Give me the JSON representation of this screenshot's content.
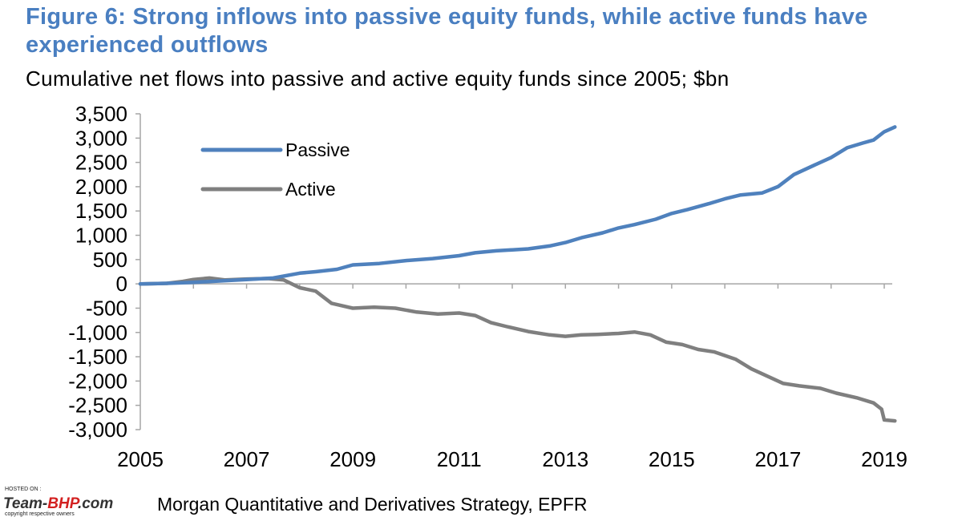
{
  "title": "Figure 6: Strong inflows into passive equity funds, while active funds have experienced outflows",
  "subtitle": "Cumulative net flows into passive and active equity funds since 2005; $bn",
  "source": "Morgan Quantitative and Derivatives Strategy, EPFR",
  "watermark": {
    "hosted_on": "HOSTED ON :",
    "site_prefix": "Team-",
    "site_brand": "BHP",
    "site_suffix": ".com",
    "copyright": "copyright respective owners"
  },
  "colors": {
    "passive": "#4f81bd",
    "active": "#7f7f7f",
    "title": "#4a7fc1"
  },
  "chart_data": {
    "type": "line",
    "title": "Figure 6: Strong inflows into passive equity funds, while active funds have experienced outflows",
    "subtitle": "Cumulative net flows into passive and active equity funds since 2005; $bn",
    "xlim": [
      2005,
      2019.2
    ],
    "ylim": [
      -3000,
      3500
    ],
    "x_ticks": [
      "2005",
      "2007",
      "2009",
      "2011",
      "2013",
      "2015",
      "2017",
      "2019"
    ],
    "y_ticks": [
      "3,500",
      "3,000",
      "2,500",
      "2,000",
      "1,500",
      "1,000",
      "500",
      "0",
      "-500",
      "-1,000",
      "-1,500",
      "-2,000",
      "-2,500",
      "-3,000"
    ],
    "y_tick_values": [
      3500,
      3000,
      2500,
      2000,
      1500,
      1000,
      500,
      0,
      -500,
      -1000,
      -1500,
      -2000,
      -2500,
      -3000
    ],
    "x_tick_values": [
      2005,
      2007,
      2009,
      2011,
      2013,
      2015,
      2017,
      2019
    ],
    "legend": [
      "Passive",
      "Active"
    ],
    "legend_position": "top-left",
    "grid": false,
    "series": [
      {
        "name": "Passive",
        "color": "#4f81bd",
        "x": [
          2005.0,
          2005.5,
          2006.0,
          2006.5,
          2007.0,
          2007.5,
          2008.0,
          2008.3,
          2008.7,
          2009.0,
          2009.5,
          2010.0,
          2010.5,
          2011.0,
          2011.3,
          2011.7,
          2012.0,
          2012.3,
          2012.7,
          2013.0,
          2013.3,
          2013.7,
          2014.0,
          2014.3,
          2014.7,
          2015.0,
          2015.3,
          2015.7,
          2016.0,
          2016.3,
          2016.7,
          2017.0,
          2017.3,
          2017.7,
          2018.0,
          2018.3,
          2018.6,
          2018.8,
          2019.0,
          2019.2
        ],
        "y": [
          0,
          10,
          30,
          60,
          90,
          120,
          220,
          250,
          300,
          390,
          420,
          480,
          520,
          580,
          640,
          680,
          700,
          720,
          780,
          850,
          950,
          1050,
          1150,
          1220,
          1330,
          1450,
          1530,
          1650,
          1750,
          1830,
          1870,
          2000,
          2250,
          2450,
          2600,
          2800,
          2900,
          2960,
          3130,
          3230
        ]
      },
      {
        "name": "Active",
        "color": "#7f7f7f",
        "x": [
          2005.0,
          2005.5,
          2005.8,
          2006.0,
          2006.3,
          2006.6,
          2007.0,
          2007.4,
          2007.7,
          2008.0,
          2008.3,
          2008.6,
          2009.0,
          2009.4,
          2009.8,
          2010.2,
          2010.6,
          2011.0,
          2011.3,
          2011.6,
          2011.9,
          2012.3,
          2012.7,
          2013.0,
          2013.3,
          2013.6,
          2014.0,
          2014.3,
          2014.6,
          2014.9,
          2015.2,
          2015.5,
          2015.8,
          2016.2,
          2016.5,
          2016.8,
          2017.1,
          2017.4,
          2017.8,
          2018.1,
          2018.5,
          2018.8,
          2018.95,
          2019.0,
          2019.2
        ],
        "y": [
          0,
          10,
          50,
          90,
          120,
          80,
          100,
          110,
          80,
          -80,
          -150,
          -400,
          -500,
          -480,
          -500,
          -580,
          -620,
          -600,
          -650,
          -800,
          -880,
          -980,
          -1050,
          -1080,
          -1050,
          -1040,
          -1020,
          -990,
          -1050,
          -1200,
          -1250,
          -1350,
          -1400,
          -1550,
          -1750,
          -1900,
          -2050,
          -2100,
          -2150,
          -2250,
          -2350,
          -2450,
          -2580,
          -2800,
          -2820
        ]
      }
    ]
  }
}
